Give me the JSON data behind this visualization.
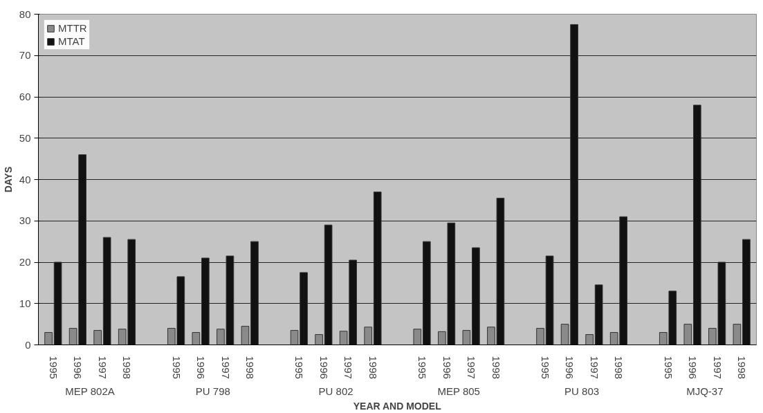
{
  "chart_data": {
    "type": "bar",
    "xlabel": "YEAR AND MODEL",
    "ylabel": "DAYS",
    "categories": [
      "1995",
      "1996",
      "1997",
      "1998",
      null,
      "1995",
      "1996",
      "1997",
      "1998",
      null,
      "1995",
      "1996",
      "1997",
      "1998",
      null,
      "1995",
      "1996",
      "1997",
      "1998",
      null,
      "1995",
      "1996",
      "1997",
      "1998",
      null,
      "1995",
      "1996",
      "1997",
      "1998"
    ],
    "series": [
      {
        "name": "MTTR",
        "color": "#8a8a8a",
        "values": [
          3,
          4,
          3.5,
          3.8,
          null,
          4,
          3,
          3.8,
          4.5,
          null,
          3.5,
          2.5,
          3.3,
          4.3,
          null,
          3.8,
          3.2,
          3.5,
          4.3,
          null,
          4,
          5,
          2.5,
          3,
          null,
          3,
          5,
          4,
          5
        ]
      },
      {
        "name": "MTAT",
        "color": "#111111",
        "values": [
          20,
          46,
          26,
          25.5,
          null,
          16.5,
          21,
          21.5,
          25,
          null,
          17.5,
          29,
          20.5,
          37,
          null,
          25,
          29.5,
          23.5,
          35.5,
          null,
          21.5,
          77.5,
          14.5,
          31,
          null,
          13,
          58,
          20,
          25.5
        ]
      }
    ],
    "annotations": [
      "MEP 802A",
      "PU 798",
      "PU 802",
      "MEP 805",
      "PU 803",
      "MJQ-37"
    ],
    "ylim": [
      0,
      80
    ],
    "yticks": [
      0,
      10,
      20,
      30,
      40,
      50,
      60,
      70,
      80
    ],
    "grid": "y",
    "legend": "top left"
  }
}
